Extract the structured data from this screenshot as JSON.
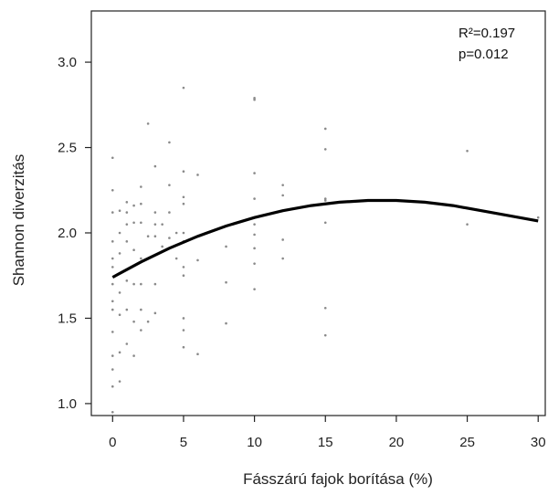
{
  "chart_data": {
    "type": "scatter",
    "title": "",
    "xlabel": "Fásszárú fajok borítása (%)",
    "ylabel": "Shannon diverzitás",
    "xlim": [
      -1.5,
      30.5
    ],
    "ylim": [
      0.93,
      3.3
    ],
    "xticks": [
      0,
      5,
      10,
      15,
      20,
      25,
      30
    ],
    "yticks": [
      1.0,
      1.5,
      2.0,
      2.5,
      3.0
    ],
    "ytick_labels": [
      "1.0",
      "1.5",
      "2.0",
      "2.5",
      "3.0"
    ],
    "grid": false,
    "annotations": [
      "R²=0.197",
      "p=0.012"
    ],
    "annotation_position": "top-right",
    "fit_curve": {
      "type": "quadratic",
      "x": [
        0,
        2,
        4,
        6,
        8,
        10,
        12,
        14,
        16,
        18,
        20,
        22,
        24,
        26,
        28,
        30
      ],
      "y": [
        1.74,
        1.83,
        1.91,
        1.98,
        2.04,
        2.09,
        2.13,
        2.16,
        2.18,
        2.19,
        2.19,
        2.18,
        2.16,
        2.13,
        2.1,
        2.07
      ]
    },
    "points": {
      "x": [
        0,
        0,
        0,
        0,
        0,
        0,
        0,
        0,
        0,
        0,
        0,
        0,
        0,
        0,
        0.5,
        0.5,
        0.5,
        0.5,
        0.5,
        0.5,
        0.5,
        1,
        1,
        1,
        1,
        1,
        1,
        1,
        1.5,
        1.5,
        1.5,
        1.5,
        1.5,
        1.5,
        2,
        2,
        2,
        2,
        2,
        2,
        2,
        2.5,
        2.5,
        2.5,
        3,
        3,
        3,
        3,
        3,
        3,
        3.5,
        3.5,
        4,
        4,
        4,
        4,
        4.5,
        4.5,
        5,
        5,
        5,
        5,
        5,
        5,
        5,
        5,
        5,
        5,
        5,
        6,
        6,
        6,
        6,
        8,
        8,
        8,
        10,
        10,
        10,
        10,
        10,
        10,
        10,
        10,
        10,
        12,
        12,
        12,
        12,
        15,
        15,
        15,
        15,
        15,
        15,
        15,
        25,
        25,
        30
      ],
      "y": [
        0.95,
        1.1,
        1.28,
        1.42,
        1.55,
        1.6,
        1.8,
        1.85,
        1.95,
        2.12,
        2.25,
        2.44,
        1.2,
        1.7,
        1.13,
        1.3,
        1.52,
        1.65,
        1.88,
        2.0,
        2.13,
        1.35,
        1.55,
        1.72,
        1.95,
        2.05,
        2.12,
        2.18,
        1.28,
        1.48,
        1.7,
        1.9,
        2.06,
        2.16,
        1.43,
        1.55,
        1.7,
        1.85,
        2.06,
        2.17,
        2.27,
        1.48,
        1.98,
        2.64,
        1.53,
        1.7,
        1.98,
        2.05,
        2.12,
        2.39,
        1.92,
        2.05,
        1.97,
        2.12,
        2.28,
        2.53,
        1.85,
        2.0,
        1.33,
        1.43,
        1.5,
        1.75,
        1.8,
        1.95,
        2.0,
        2.17,
        2.21,
        2.36,
        2.85,
        1.29,
        1.84,
        1.98,
        2.34,
        1.47,
        1.71,
        1.92,
        1.67,
        1.82,
        1.91,
        1.99,
        2.05,
        2.2,
        2.35,
        2.79,
        2.78,
        1.85,
        1.96,
        2.22,
        2.28,
        1.4,
        1.56,
        2.06,
        2.19,
        2.2,
        2.49,
        2.61,
        2.05,
        2.48,
        2.09
      ]
    }
  }
}
